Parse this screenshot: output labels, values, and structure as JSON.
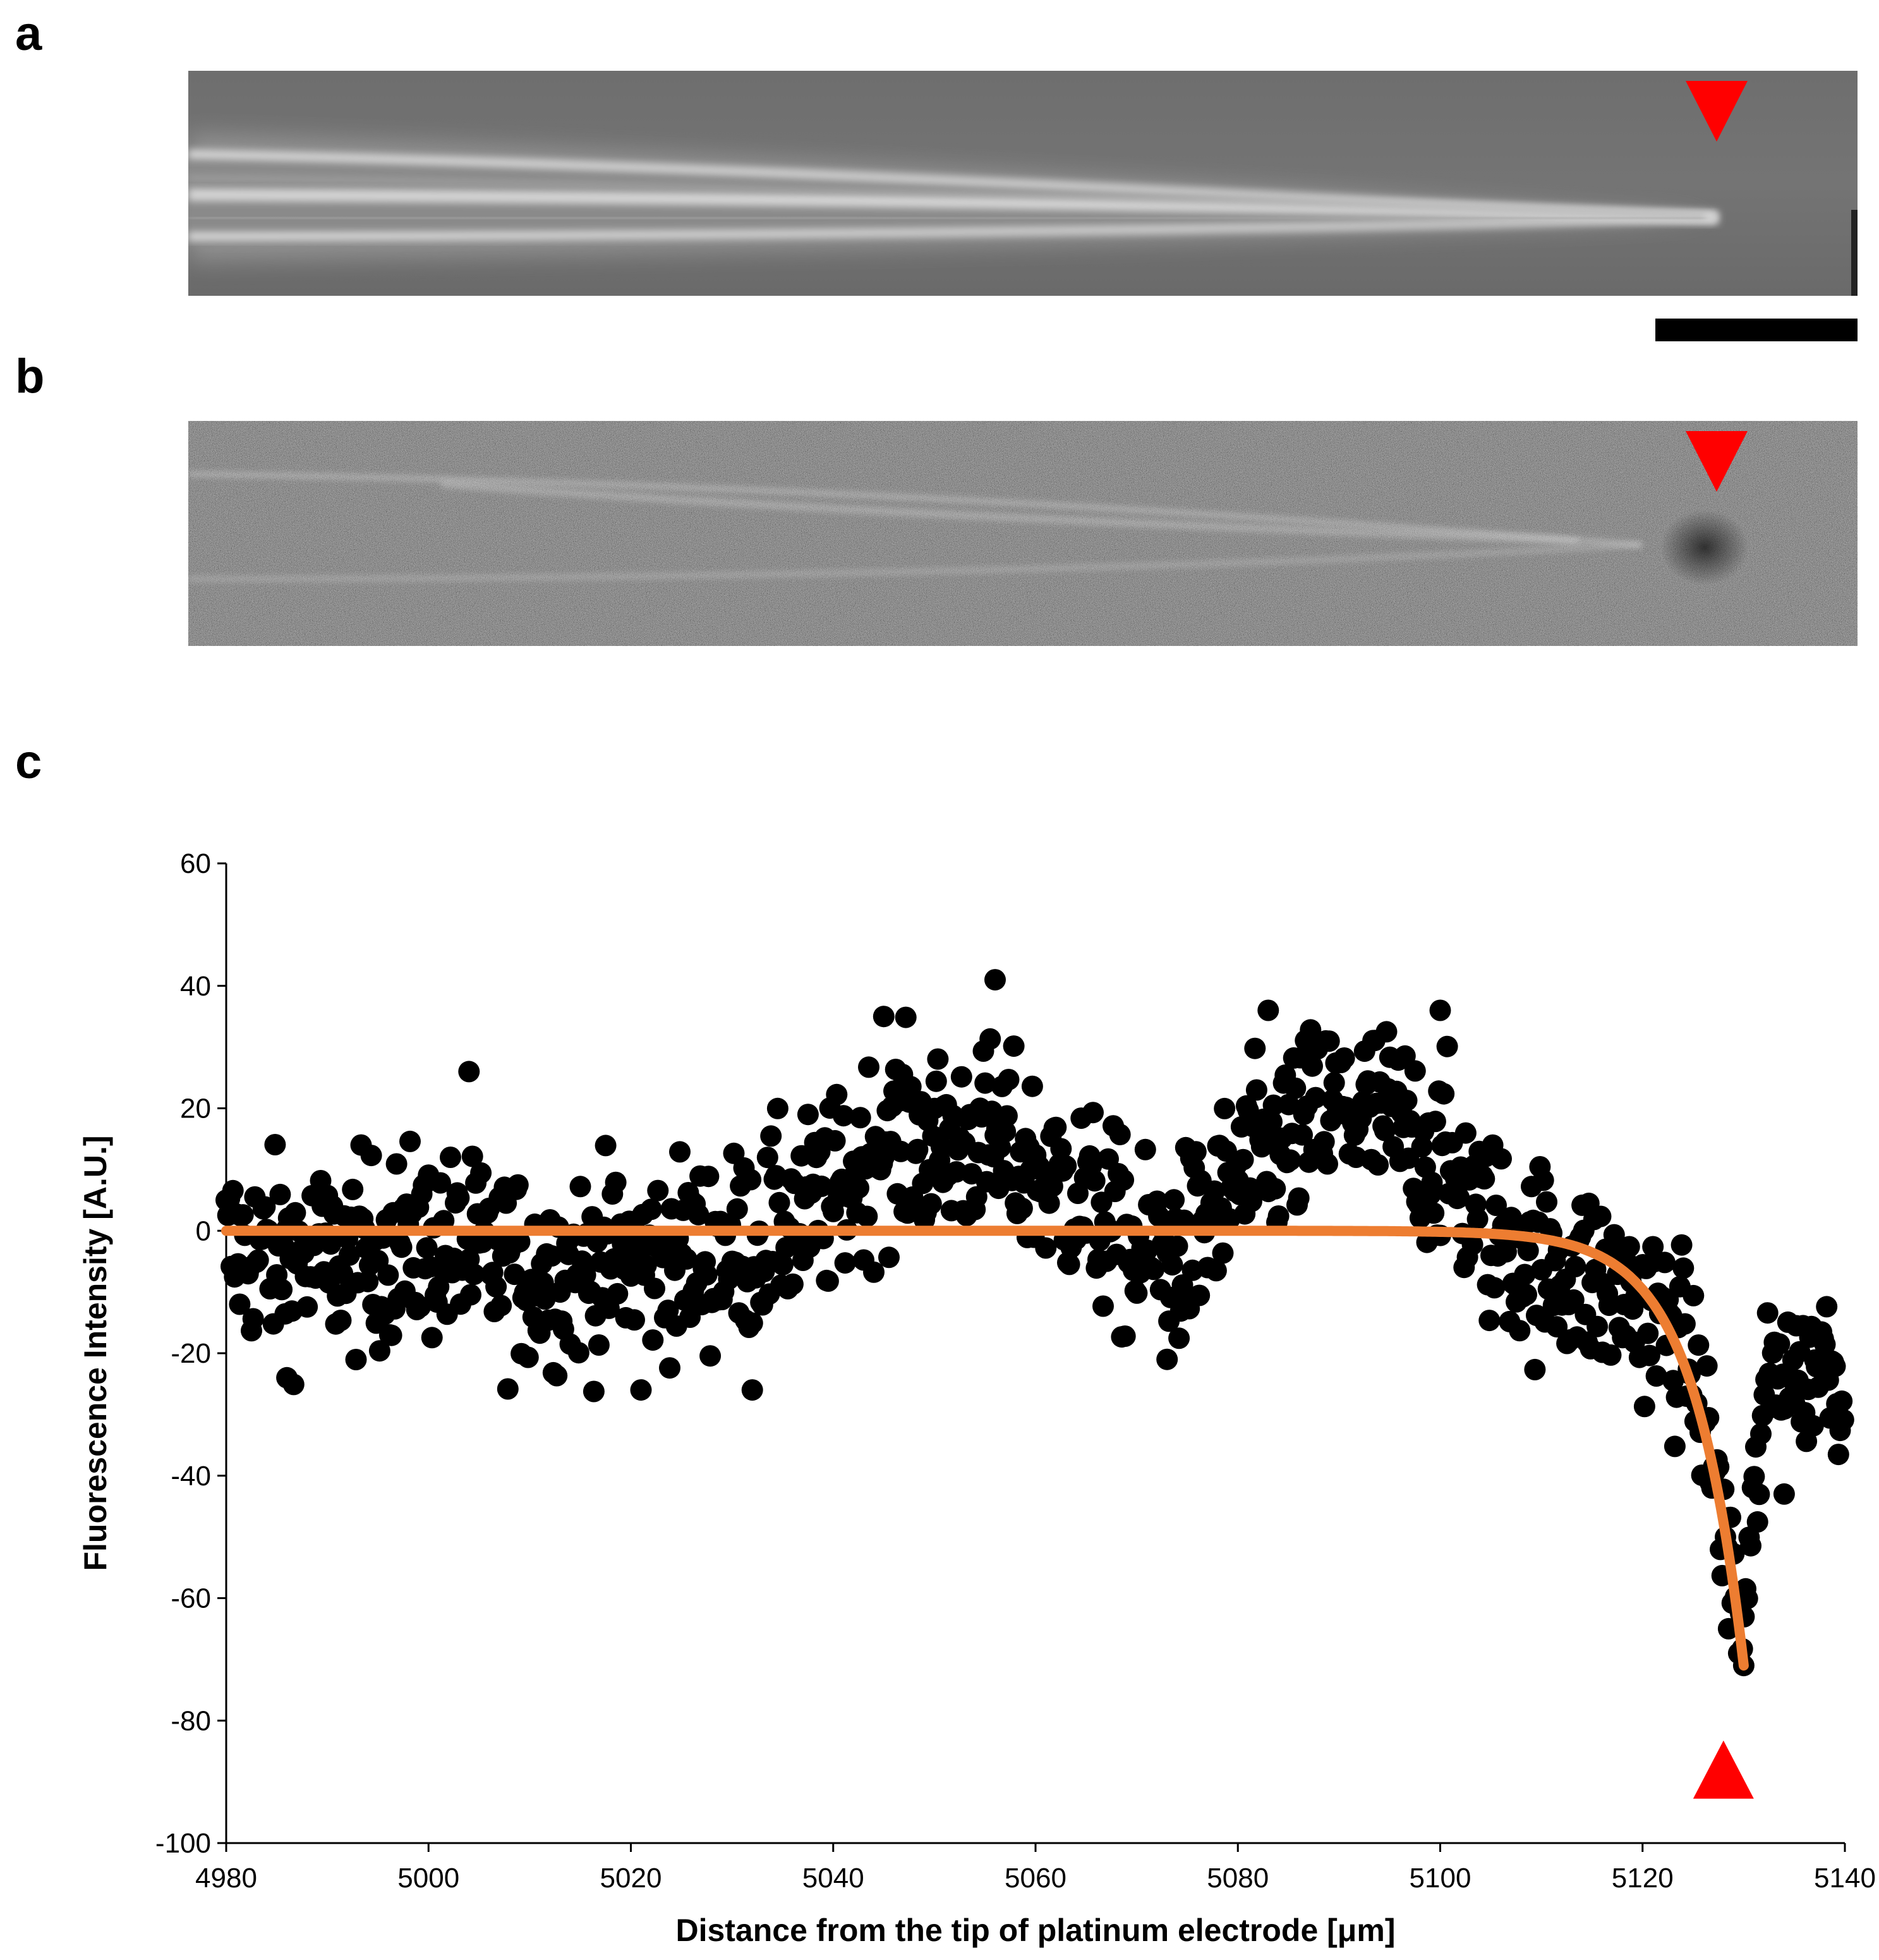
{
  "panels": {
    "a": {
      "label": "a"
    },
    "b": {
      "label": "b"
    },
    "c": {
      "label": "c"
    }
  },
  "colors": {
    "marker": "#ff0000",
    "fit": "#ed7d31",
    "points": "#000000"
  },
  "chart_data": {
    "type": "scatter",
    "title": "",
    "xlabel": "Distance from the tip of platinum electrode [μm]",
    "ylabel": "Fluorescence Intensity [A.U.]",
    "xlim": [
      4980,
      5140
    ],
    "ylim": [
      -100,
      60
    ],
    "xticks": [
      4980,
      5000,
      5020,
      5040,
      5060,
      5080,
      5100,
      5120,
      5140
    ],
    "yticks": [
      -100,
      -80,
      -60,
      -40,
      -20,
      0,
      20,
      40,
      60
    ],
    "grid": false,
    "scatter": {
      "name": "Fluorescence intensity",
      "x_start": 4980,
      "x_step": 0.1667,
      "description": "~900 dense points; baseline values ≈ -20..20",
      "profile": [
        {
          "x": 4980,
          "y": -3
        },
        {
          "x": 4990,
          "y": -5
        },
        {
          "x": 5000,
          "y": -2
        },
        {
          "x": 5010,
          "y": -7
        },
        {
          "x": 5020,
          "y": -5
        },
        {
          "x": 5030,
          "y": -3
        },
        {
          "x": 5040,
          "y": 5
        },
        {
          "x": 5045,
          "y": 15
        },
        {
          "x": 5050,
          "y": 14
        },
        {
          "x": 5055,
          "y": 15
        },
        {
          "x": 5060,
          "y": 10
        },
        {
          "x": 5065,
          "y": 5
        },
        {
          "x": 5070,
          "y": -4
        },
        {
          "x": 5075,
          "y": -3
        },
        {
          "x": 5080,
          "y": 8
        },
        {
          "x": 5085,
          "y": 15
        },
        {
          "x": 5090,
          "y": 20
        },
        {
          "x": 5095,
          "y": 18
        },
        {
          "x": 5100,
          "y": 12
        },
        {
          "x": 5105,
          "y": 0
        },
        {
          "x": 5110,
          "y": -5
        },
        {
          "x": 5115,
          "y": -8
        },
        {
          "x": 5120,
          "y": -12
        },
        {
          "x": 5124,
          "y": -18
        },
        {
          "x": 5126,
          "y": -30
        },
        {
          "x": 5128,
          "y": -48
        },
        {
          "x": 5130,
          "y": -65
        },
        {
          "x": 5132,
          "y": -28
        },
        {
          "x": 5134,
          "y": -20
        },
        {
          "x": 5136,
          "y": -25
        },
        {
          "x": 5138,
          "y": -18
        },
        {
          "x": 5140,
          "y": -28
        }
      ],
      "extreme_points": [
        {
          "x": 5056,
          "y": 41
        },
        {
          "x": 5100,
          "y": 36
        },
        {
          "x": 5083,
          "y": 36
        },
        {
          "x": 5045,
          "y": 35
        },
        {
          "x": 5004,
          "y": 26
        },
        {
          "x": 5130,
          "y": -71
        },
        {
          "x": 5129.5,
          "y": -69
        },
        {
          "x": 5128.5,
          "y": -65
        },
        {
          "x": 5134,
          "y": -43
        },
        {
          "x": 5021,
          "y": -26
        },
        {
          "x": 5032,
          "y": -26
        },
        {
          "x": 5073,
          "y": -21
        },
        {
          "x": 4986,
          "y": -24
        }
      ]
    },
    "fit": {
      "name": "Exponential fit",
      "x_start": 4980,
      "x_end": 5130,
      "end_value": -71,
      "decay_length": 5
    },
    "markers": [
      {
        "name": "electrode-tip",
        "x": 5128,
        "y": -88,
        "shape": "triangle-up"
      }
    ]
  }
}
